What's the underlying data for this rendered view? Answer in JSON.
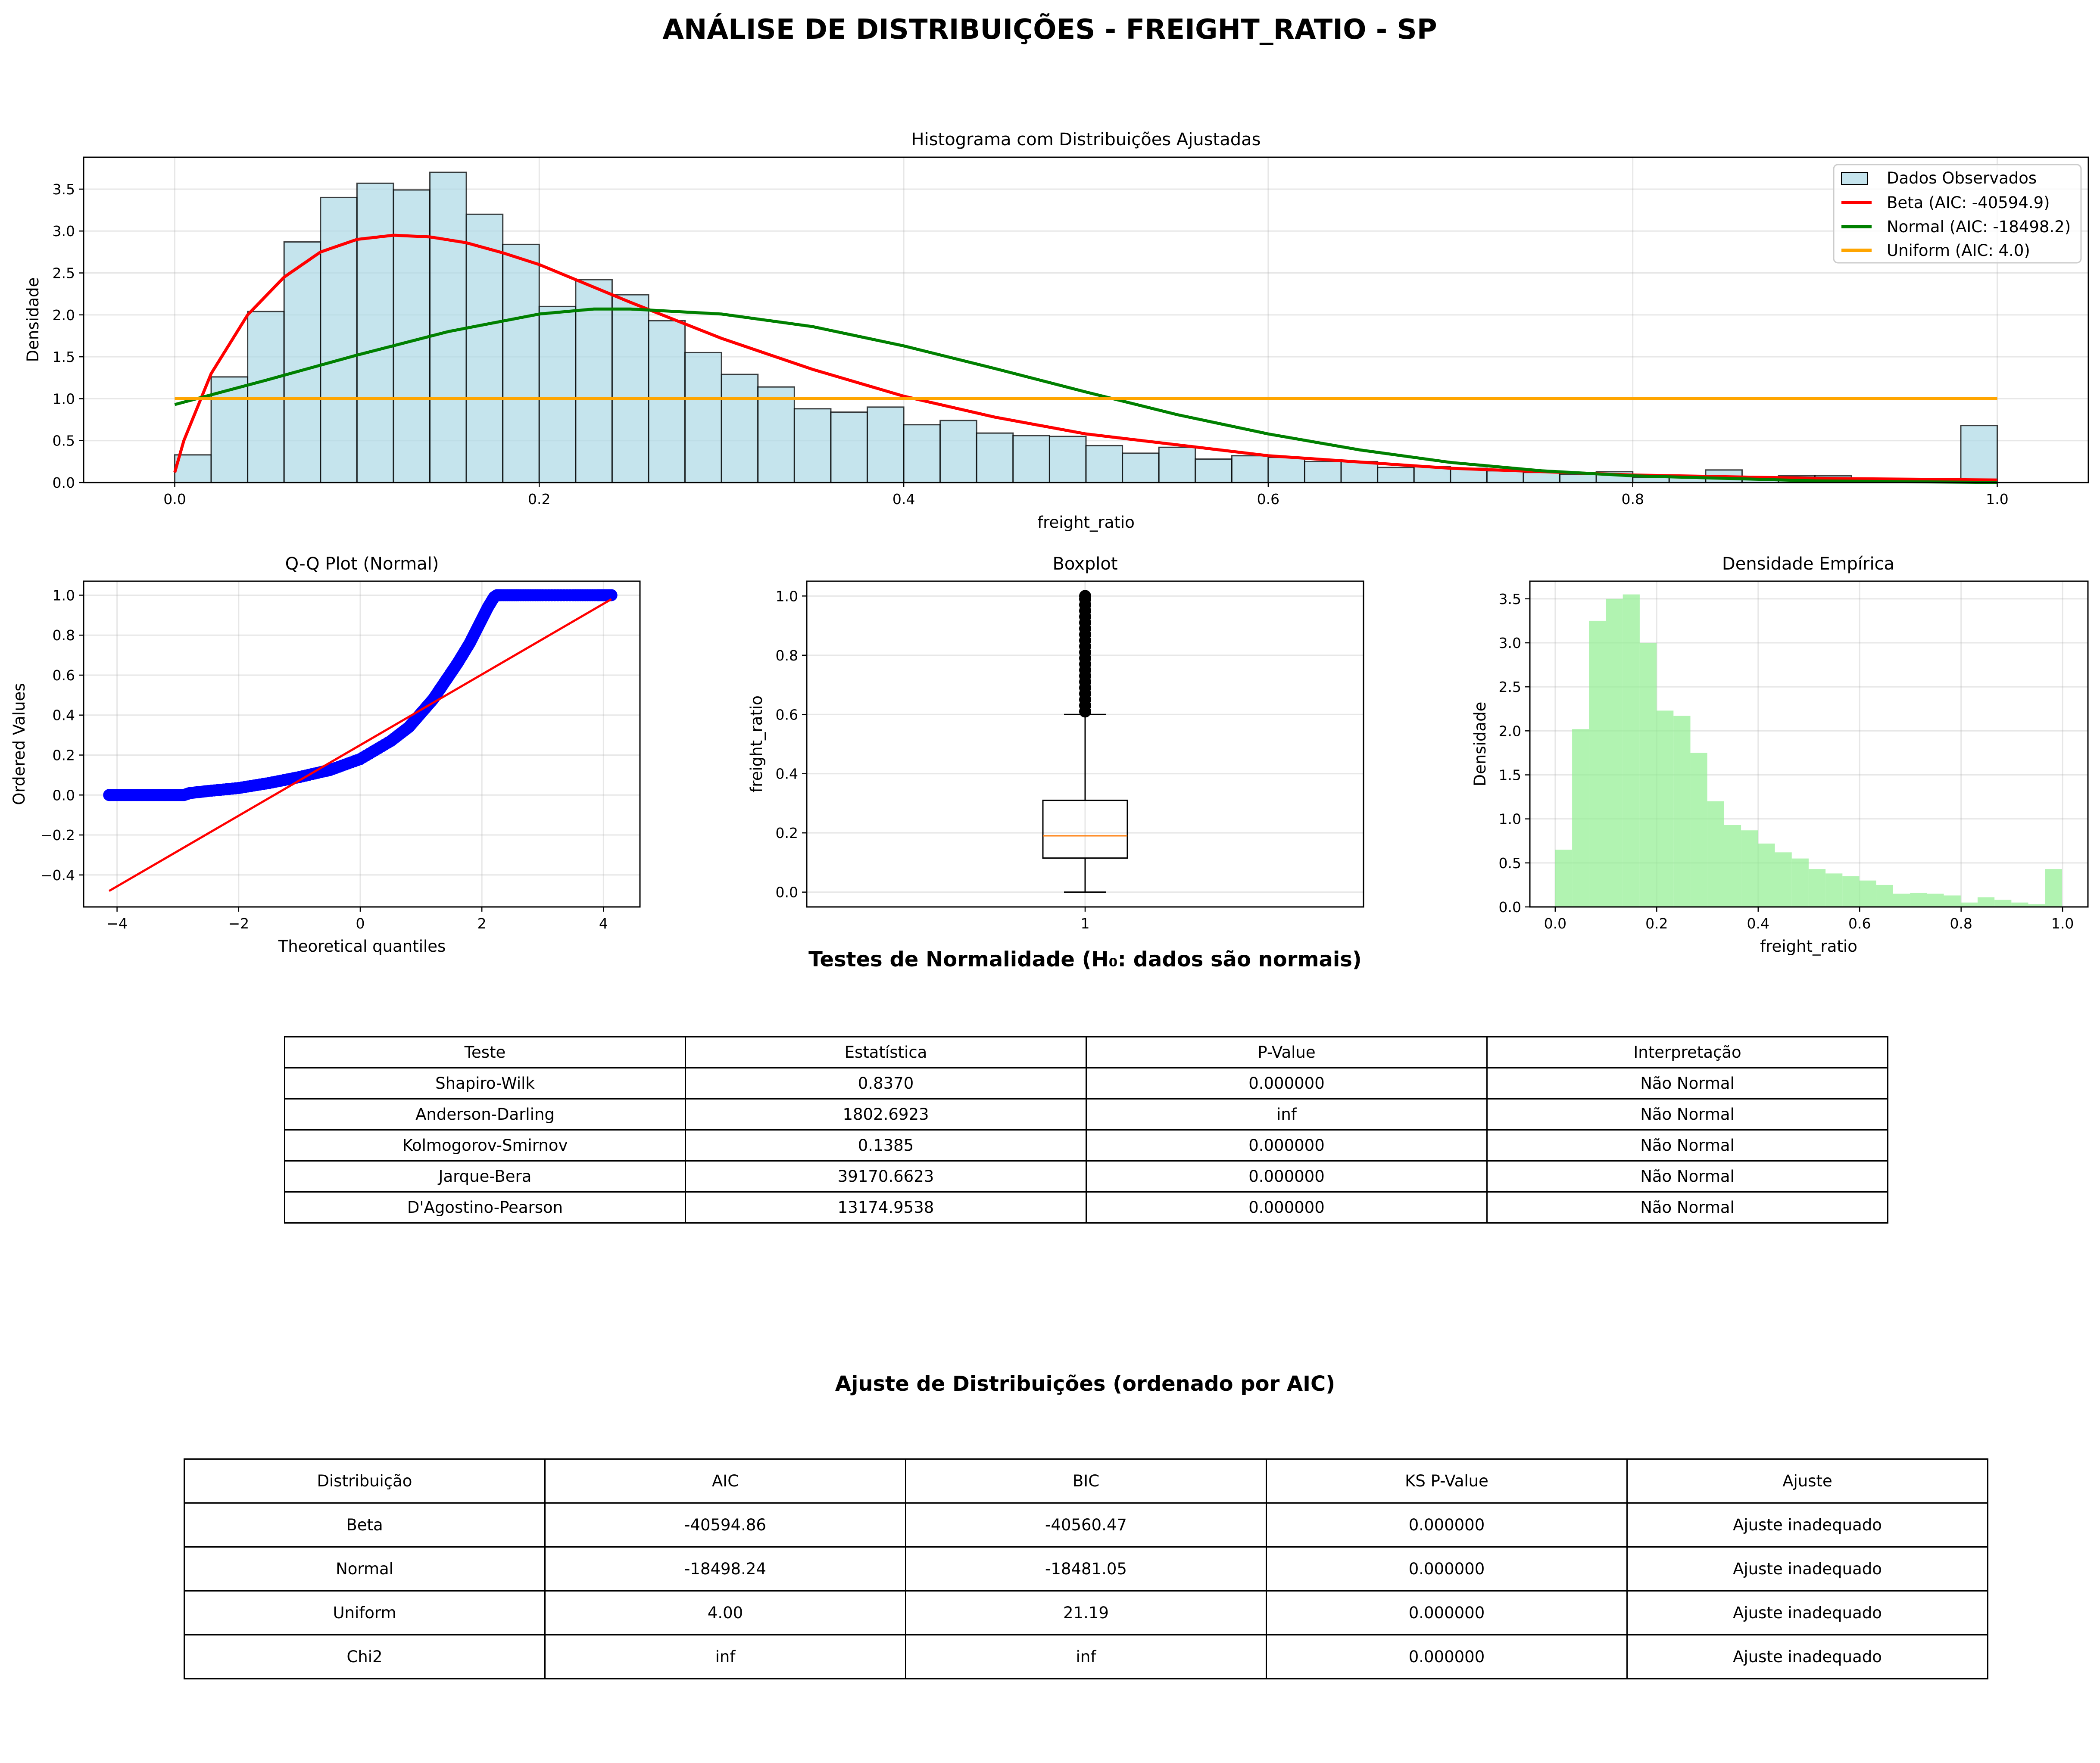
{
  "suptitle": "ANÁLISE DE DISTRIBUIÇÕES - FREIGHT_RATIO - SP",
  "colors": {
    "hist_fill": "#add8e6",
    "beta": "#ff0000",
    "normal": "#008000",
    "uniform": "#ffa500",
    "qq_points": "#0000ff",
    "qq_line": "#ff0000",
    "box_median": "#ff7f0e",
    "density_fill": "#90ee90"
  },
  "chart_data": [
    {
      "type": "bar",
      "title": "Histograma com Distribuições Ajustadas",
      "xlabel": "freight_ratio",
      "ylabel": "Densidade",
      "xlim": [
        -0.05,
        1.05
      ],
      "ylim": [
        0,
        3.88
      ],
      "xticks": [
        "0.0",
        "0.2",
        "0.4",
        "0.6",
        "0.8",
        "1.0"
      ],
      "yticks": [
        "0.0",
        "0.5",
        "1.0",
        "1.5",
        "2.0",
        "2.5",
        "3.0",
        "3.5"
      ],
      "grid": true,
      "legend_position": "top-right",
      "bin_width": 0.02,
      "bin_start": 0.0,
      "histogram_values": [
        0.33,
        1.26,
        2.04,
        2.87,
        3.4,
        3.57,
        3.49,
        3.7,
        3.2,
        2.84,
        2.1,
        2.42,
        2.24,
        1.93,
        1.55,
        1.29,
        1.14,
        0.88,
        0.84,
        0.9,
        0.69,
        0.74,
        0.59,
        0.56,
        0.55,
        0.44,
        0.35,
        0.42,
        0.28,
        0.32,
        0.3,
        0.25,
        0.25,
        0.18,
        0.19,
        0.17,
        0.14,
        0.12,
        0.1,
        0.13,
        0.06,
        0.08,
        0.15,
        0.06,
        0.08,
        0.08,
        0.04,
        0.03,
        0.03,
        0.68
      ],
      "series": [
        {
          "name": "Dados Observados",
          "kind": "histogram"
        },
        {
          "name": "Beta (AIC: -40594.9)",
          "kind": "line",
          "x": [
            0.0,
            0.005,
            0.02,
            0.04,
            0.06,
            0.08,
            0.1,
            0.12,
            0.14,
            0.16,
            0.18,
            0.2,
            0.25,
            0.3,
            0.35,
            0.4,
            0.45,
            0.5,
            0.6,
            0.7,
            0.8,
            0.9,
            1.0
          ],
          "y": [
            0.12,
            0.5,
            1.3,
            2.0,
            2.45,
            2.75,
            2.9,
            2.95,
            2.93,
            2.86,
            2.74,
            2.6,
            2.15,
            1.72,
            1.35,
            1.03,
            0.78,
            0.58,
            0.32,
            0.17,
            0.09,
            0.05,
            0.03
          ]
        },
        {
          "name": "Normal (AIC: -18498.2)",
          "kind": "line",
          "x": [
            0.0,
            0.05,
            0.1,
            0.15,
            0.2,
            0.23,
            0.25,
            0.3,
            0.35,
            0.4,
            0.45,
            0.5,
            0.55,
            0.6,
            0.65,
            0.7,
            0.75,
            0.8,
            0.9,
            1.0
          ],
          "y": [
            0.93,
            1.22,
            1.52,
            1.8,
            2.01,
            2.07,
            2.07,
            2.01,
            1.86,
            1.63,
            1.36,
            1.08,
            0.81,
            0.58,
            0.39,
            0.24,
            0.14,
            0.08,
            0.02,
            0.0
          ]
        },
        {
          "name": "Uniform (AIC: 4.0)",
          "kind": "line",
          "x": [
            0.0,
            1.0
          ],
          "y": [
            1.0,
            1.0
          ]
        }
      ]
    },
    {
      "type": "scatter",
      "title": "Q-Q Plot (Normal)",
      "xlabel": "Theoretical quantiles",
      "ylabel": "Ordered Values",
      "xlim": [
        -4.55,
        4.6
      ],
      "ylim": [
        -0.56,
        1.07
      ],
      "xticks": [
        "−4",
        "−2",
        "0",
        "2",
        "4"
      ],
      "yticks": [
        "−0.4",
        "−0.2",
        "0.0",
        "0.2",
        "0.4",
        "0.6",
        "0.8",
        "1.0"
      ],
      "grid": true,
      "points": {
        "x": [
          -4.13,
          -3.9,
          -3.7,
          -3.5,
          -3.3,
          -3.1,
          -2.9,
          -2.8,
          -2.5,
          -2.0,
          -1.5,
          -1.0,
          -0.5,
          0.0,
          0.5,
          0.8,
          1.0,
          1.2,
          1.4,
          1.6,
          1.8,
          1.9,
          2.0,
          2.1,
          2.2,
          2.25,
          2.3,
          2.6,
          3.0,
          3.5,
          3.9,
          4.13
        ],
        "y": [
          0.0,
          0.0,
          0.0,
          0.0,
          0.0,
          0.0,
          0.0,
          0.01,
          0.02,
          0.035,
          0.06,
          0.09,
          0.125,
          0.18,
          0.27,
          0.34,
          0.41,
          0.48,
          0.57,
          0.66,
          0.76,
          0.82,
          0.88,
          0.94,
          0.99,
          1.0,
          1.0,
          1.0,
          1.0,
          1.0,
          1.0,
          1.0
        ]
      },
      "reference_line": {
        "x": [
          -4.13,
          4.13
        ],
        "y": [
          -0.48,
          0.98
        ]
      }
    },
    {
      "type": "box",
      "title": "Boxplot",
      "ylabel": "freight_ratio",
      "xticks": [
        "1"
      ],
      "yticks": [
        "0.0",
        "0.2",
        "0.4",
        "0.6",
        "0.8",
        "1.0"
      ],
      "ylim": [
        -0.05,
        1.05
      ],
      "grid": true,
      "whisker_low": 0.0,
      "q1": 0.115,
      "median": 0.19,
      "q3": 0.31,
      "whisker_high": 0.6,
      "outliers": [
        0.61,
        0.63,
        0.65,
        0.67,
        0.69,
        0.71,
        0.73,
        0.75,
        0.77,
        0.79,
        0.81,
        0.83,
        0.85,
        0.87,
        0.89,
        0.91,
        0.93,
        0.95,
        0.97,
        0.99,
        1.0
      ]
    },
    {
      "type": "bar",
      "title": "Densidade Empírica",
      "xlabel": "freight_ratio",
      "ylabel": "Densidade",
      "xlim": [
        -0.05,
        1.05
      ],
      "ylim": [
        0,
        3.7
      ],
      "xticks": [
        "0.0",
        "0.2",
        "0.4",
        "0.6",
        "0.8",
        "1.0"
      ],
      "yticks": [
        "0.0",
        "0.5",
        "1.0",
        "1.5",
        "2.0",
        "2.5",
        "3.0",
        "3.5"
      ],
      "grid": true,
      "bin_width": 0.0333,
      "bin_start": 0.0,
      "values": [
        0.65,
        2.02,
        3.25,
        3.5,
        3.55,
        3.0,
        2.23,
        2.17,
        1.75,
        1.2,
        0.93,
        0.87,
        0.72,
        0.62,
        0.55,
        0.43,
        0.38,
        0.35,
        0.3,
        0.25,
        0.15,
        0.16,
        0.15,
        0.13,
        0.05,
        0.11,
        0.08,
        0.05,
        0.03,
        0.43
      ]
    }
  ],
  "normality_tests": {
    "title": "Testes de Normalidade (H₀: dados são normais)",
    "headers": [
      "Teste",
      "Estatística",
      "P-Value",
      "Interpretação"
    ],
    "rows": [
      [
        "Shapiro-Wilk",
        "0.8370",
        "0.000000",
        "Não Normal"
      ],
      [
        "Anderson-Darling",
        "1802.6923",
        "inf",
        "Não Normal"
      ],
      [
        "Kolmogorov-Smirnov",
        "0.1385",
        "0.000000",
        "Não Normal"
      ],
      [
        "Jarque-Bera",
        "39170.6623",
        "0.000000",
        "Não Normal"
      ],
      [
        "D'Agostino-Pearson",
        "13174.9538",
        "0.000000",
        "Não Normal"
      ]
    ]
  },
  "distribution_fit": {
    "title": "Ajuste de Distribuições (ordenado por AIC)",
    "headers": [
      "Distribuição",
      "AIC",
      "BIC",
      "KS P-Value",
      "Ajuste"
    ],
    "rows": [
      [
        "Beta",
        "-40594.86",
        "-40560.47",
        "0.000000",
        "Ajuste inadequado"
      ],
      [
        "Normal",
        "-18498.24",
        "-18481.05",
        "0.000000",
        "Ajuste inadequado"
      ],
      [
        "Uniform",
        "4.00",
        "21.19",
        "0.000000",
        "Ajuste inadequado"
      ],
      [
        "Chi2",
        "inf",
        "inf",
        "0.000000",
        "Ajuste inadequado"
      ]
    ]
  }
}
